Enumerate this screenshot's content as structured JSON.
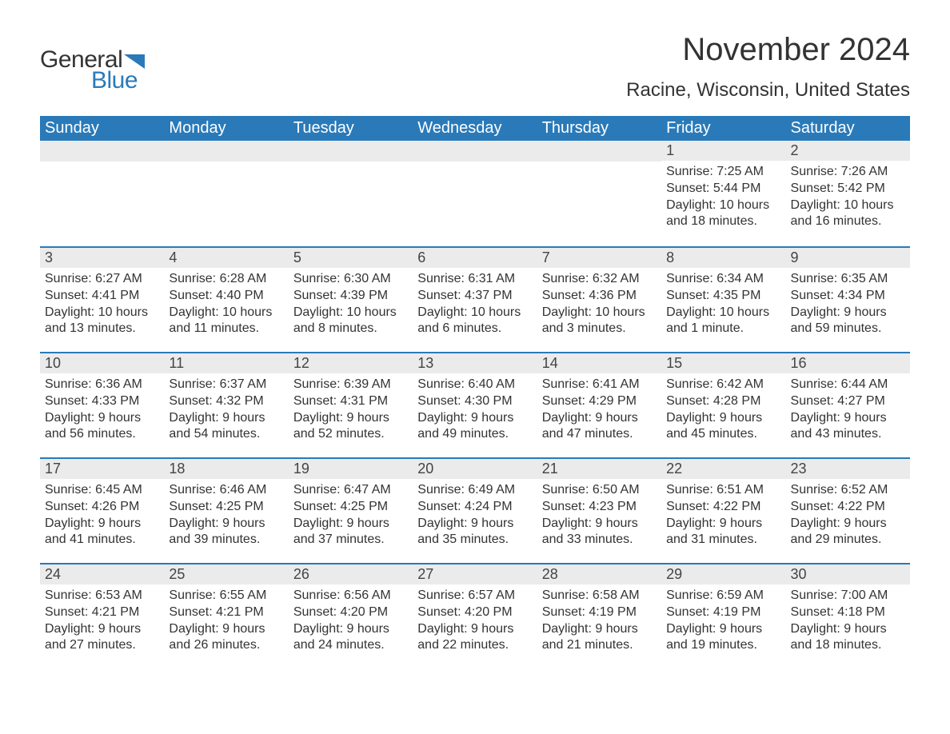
{
  "logo": {
    "text1": "General",
    "text2": "Blue",
    "flag_color": "#2a7ab9"
  },
  "title": "November 2024",
  "location": "Racine, Wisconsin, United States",
  "colors": {
    "header_bg": "#2a7ab9",
    "header_text": "#ffffff",
    "daynum_bg": "#ebebeb",
    "border_top": "#2a7ab9",
    "body_text": "#333333",
    "background": "#ffffff"
  },
  "fonts": {
    "title_size": 40,
    "location_size": 24,
    "th_size": 20,
    "daynum_size": 18,
    "info_size": 16
  },
  "columns": [
    "Sunday",
    "Monday",
    "Tuesday",
    "Wednesday",
    "Thursday",
    "Friday",
    "Saturday"
  ],
  "weeks": [
    [
      null,
      null,
      null,
      null,
      null,
      {
        "n": "1",
        "sunrise": "7:25 AM",
        "sunset": "5:44 PM",
        "daylight": "10 hours and 18 minutes."
      },
      {
        "n": "2",
        "sunrise": "7:26 AM",
        "sunset": "5:42 PM",
        "daylight": "10 hours and 16 minutes."
      }
    ],
    [
      {
        "n": "3",
        "sunrise": "6:27 AM",
        "sunset": "4:41 PM",
        "daylight": "10 hours and 13 minutes."
      },
      {
        "n": "4",
        "sunrise": "6:28 AM",
        "sunset": "4:40 PM",
        "daylight": "10 hours and 11 minutes."
      },
      {
        "n": "5",
        "sunrise": "6:30 AM",
        "sunset": "4:39 PM",
        "daylight": "10 hours and 8 minutes."
      },
      {
        "n": "6",
        "sunrise": "6:31 AM",
        "sunset": "4:37 PM",
        "daylight": "10 hours and 6 minutes."
      },
      {
        "n": "7",
        "sunrise": "6:32 AM",
        "sunset": "4:36 PM",
        "daylight": "10 hours and 3 minutes."
      },
      {
        "n": "8",
        "sunrise": "6:34 AM",
        "sunset": "4:35 PM",
        "daylight": "10 hours and 1 minute."
      },
      {
        "n": "9",
        "sunrise": "6:35 AM",
        "sunset": "4:34 PM",
        "daylight": "9 hours and 59 minutes."
      }
    ],
    [
      {
        "n": "10",
        "sunrise": "6:36 AM",
        "sunset": "4:33 PM",
        "daylight": "9 hours and 56 minutes."
      },
      {
        "n": "11",
        "sunrise": "6:37 AM",
        "sunset": "4:32 PM",
        "daylight": "9 hours and 54 minutes."
      },
      {
        "n": "12",
        "sunrise": "6:39 AM",
        "sunset": "4:31 PM",
        "daylight": "9 hours and 52 minutes."
      },
      {
        "n": "13",
        "sunrise": "6:40 AM",
        "sunset": "4:30 PM",
        "daylight": "9 hours and 49 minutes."
      },
      {
        "n": "14",
        "sunrise": "6:41 AM",
        "sunset": "4:29 PM",
        "daylight": "9 hours and 47 minutes."
      },
      {
        "n": "15",
        "sunrise": "6:42 AM",
        "sunset": "4:28 PM",
        "daylight": "9 hours and 45 minutes."
      },
      {
        "n": "16",
        "sunrise": "6:44 AM",
        "sunset": "4:27 PM",
        "daylight": "9 hours and 43 minutes."
      }
    ],
    [
      {
        "n": "17",
        "sunrise": "6:45 AM",
        "sunset": "4:26 PM",
        "daylight": "9 hours and 41 minutes."
      },
      {
        "n": "18",
        "sunrise": "6:46 AM",
        "sunset": "4:25 PM",
        "daylight": "9 hours and 39 minutes."
      },
      {
        "n": "19",
        "sunrise": "6:47 AM",
        "sunset": "4:25 PM",
        "daylight": "9 hours and 37 minutes."
      },
      {
        "n": "20",
        "sunrise": "6:49 AM",
        "sunset": "4:24 PM",
        "daylight": "9 hours and 35 minutes."
      },
      {
        "n": "21",
        "sunrise": "6:50 AM",
        "sunset": "4:23 PM",
        "daylight": "9 hours and 33 minutes."
      },
      {
        "n": "22",
        "sunrise": "6:51 AM",
        "sunset": "4:22 PM",
        "daylight": "9 hours and 31 minutes."
      },
      {
        "n": "23",
        "sunrise": "6:52 AM",
        "sunset": "4:22 PM",
        "daylight": "9 hours and 29 minutes."
      }
    ],
    [
      {
        "n": "24",
        "sunrise": "6:53 AM",
        "sunset": "4:21 PM",
        "daylight": "9 hours and 27 minutes."
      },
      {
        "n": "25",
        "sunrise": "6:55 AM",
        "sunset": "4:21 PM",
        "daylight": "9 hours and 26 minutes."
      },
      {
        "n": "26",
        "sunrise": "6:56 AM",
        "sunset": "4:20 PM",
        "daylight": "9 hours and 24 minutes."
      },
      {
        "n": "27",
        "sunrise": "6:57 AM",
        "sunset": "4:20 PM",
        "daylight": "9 hours and 22 minutes."
      },
      {
        "n": "28",
        "sunrise": "6:58 AM",
        "sunset": "4:19 PM",
        "daylight": "9 hours and 21 minutes."
      },
      {
        "n": "29",
        "sunrise": "6:59 AM",
        "sunset": "4:19 PM",
        "daylight": "9 hours and 19 minutes."
      },
      {
        "n": "30",
        "sunrise": "7:00 AM",
        "sunset": "4:18 PM",
        "daylight": "9 hours and 18 minutes."
      }
    ]
  ],
  "labels": {
    "sunrise": "Sunrise: ",
    "sunset": "Sunset: ",
    "daylight": "Daylight: "
  }
}
